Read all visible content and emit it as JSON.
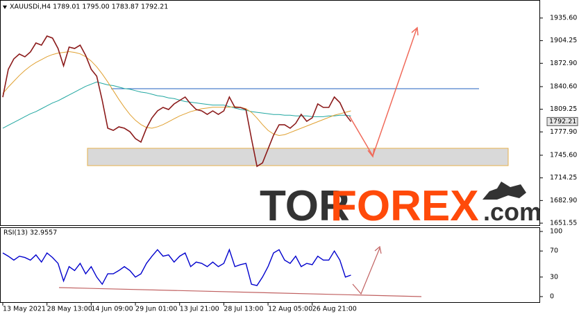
{
  "chart_data": {
    "type": "line",
    "title": "XAUUSDi,H4  1789.01 1795.00 1783.87 1792.21",
    "categories": [
      "13 May 2021",
      null,
      null,
      null,
      null,
      null,
      null,
      null,
      "28 May 13:00",
      null,
      null,
      null,
      null,
      null,
      null,
      null,
      "14 Jun 09:00",
      null,
      null,
      null,
      null,
      null,
      null,
      null,
      "29 Jun 01:00",
      null,
      null,
      null,
      null,
      null,
      null,
      null,
      "13 Jul 21:00",
      null,
      null,
      null,
      null,
      null,
      null,
      null,
      "28 Jul 13:00",
      null,
      null,
      null,
      null,
      null,
      null,
      null,
      "12 Aug 05:00",
      null,
      null,
      null,
      null,
      null,
      null,
      null,
      "26 Aug 21:00",
      null,
      null,
      null,
      null,
      null,
      null,
      null
    ],
    "series": [
      {
        "color": "#8b1a1a",
        "values": [
          1826,
          1864.6,
          1879,
          1885.7,
          1881.9,
          1888.6,
          1901,
          1898,
          1910.6,
          1907.8,
          1893.4,
          1869.4,
          1895.3,
          1893.4,
          1898,
          1883.8,
          1864.6,
          1855,
          1821.4,
          1783,
          1780,
          1784.9,
          1783,
          1778.2,
          1768.6,
          1763.8,
          1783,
          1797.4,
          1807,
          1811.8,
          1808.9,
          1816.6,
          1821.4,
          1826.2,
          1816.6,
          1808.9,
          1807,
          1802.2,
          1807,
          1802.2,
          1807,
          1826.2,
          1811.8,
          1811.8,
          1808.9,
          1768.6,
          1730.2,
          1735,
          1754.2,
          1773.4,
          1787.8,
          1787.8,
          1783,
          1789.7,
          1802.2,
          1792.6,
          1797.4,
          1816.6,
          1811.8,
          1811.8,
          1826.2,
          1818.5,
          1802.2,
          1792.2
        ]
      },
      {
        "color": "#1fa6a0",
        "values": [
          1783,
          1787,
          1791,
          1795,
          1799,
          1803,
          1806,
          1810,
          1814,
          1818,
          1821,
          1825,
          1829,
          1833,
          1837,
          1841,
          1844,
          1847,
          1845,
          1843,
          1842,
          1840,
          1838,
          1837,
          1835,
          1833,
          1832,
          1830,
          1828,
          1827,
          1825,
          1824,
          1822,
          1820,
          1819,
          1818,
          1817,
          1816,
          1815,
          1815,
          1815,
          1813,
          1811,
          1809,
          1808,
          1806,
          1805,
          1804,
          1803,
          1802,
          1802,
          1801,
          1801,
          1800,
          1800,
          1800,
          1799,
          1799,
          1799,
          1800,
          1800,
          1801,
          1801,
          1800
        ]
      },
      {
        "color": "#e0a030",
        "values": [
          1831,
          1840,
          1848,
          1856,
          1863,
          1869,
          1874,
          1878,
          1882,
          1885,
          1887,
          1888,
          1889,
          1888,
          1886,
          1882,
          1876,
          1868,
          1858,
          1847,
          1835,
          1823,
          1812,
          1802,
          1794,
          1788,
          1784,
          1783,
          1785,
          1788,
          1792,
          1796,
          1800,
          1803,
          1806,
          1808,
          1810,
          1811,
          1812,
          1812,
          1812,
          1812,
          1813,
          1812,
          1810,
          1805,
          1797,
          1788,
          1780,
          1775,
          1773,
          1774,
          1777,
          1780,
          1783,
          1786,
          1789,
          1792,
          1795,
          1798,
          1801,
          1803,
          1805,
          1807
        ]
      }
    ],
    "ylim": [
      1648.7,
      1958.6
    ],
    "yticks": [
      {
        "value": 1935.6,
        "label": "1935.60"
      },
      1904.25,
      {
        "value": 1872.9,
        "label": "1872.90"
      },
      {
        "value": 1840.6,
        "label": "1840.60"
      },
      1809.25,
      {
        "value": 1777.9,
        "label": "1777.90"
      },
      {
        "value": 1745.6,
        "label": "1745.60"
      },
      1714.25,
      {
        "value": 1682.9,
        "label": "1682.90"
      },
      1651.55
    ],
    "last_price": 1792.21,
    "indicator": {
      "title": "RSI(13) 32.9557",
      "color": "#0000cd",
      "values": [
        67,
        62,
        56,
        62,
        60,
        56,
        64,
        53,
        67,
        60,
        51,
        24,
        46,
        40,
        51,
        35,
        46,
        30,
        19,
        35,
        35,
        40,
        46,
        40,
        30,
        35,
        51,
        62,
        72,
        62,
        64,
        53,
        62,
        67,
        46,
        53,
        51,
        46,
        53,
        46,
        51,
        72,
        46,
        49,
        51,
        19,
        17,
        30,
        46,
        67,
        72,
        56,
        51,
        62,
        46,
        51,
        49,
        62,
        56,
        56,
        70,
        56,
        30,
        33
      ],
      "ylim": [
        0,
        100
      ],
      "yticks": [
        100,
        70,
        30,
        0
      ]
    }
  },
  "watermark": {
    "left": "TOR",
    "middle": "FOREX",
    "right": ".com"
  }
}
